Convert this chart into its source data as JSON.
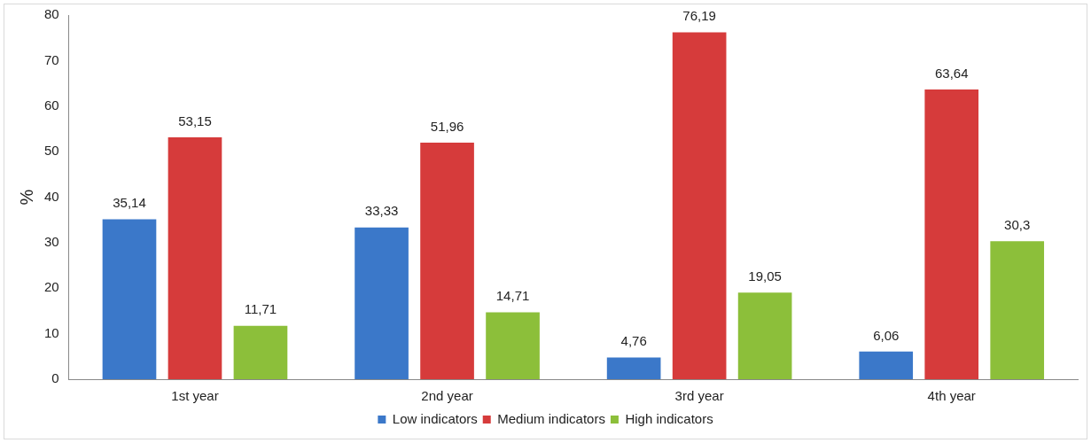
{
  "chart_data": {
    "type": "bar",
    "ylabel": "%",
    "categories": [
      "1st year",
      "2nd year",
      "3rd year",
      "4th year"
    ],
    "series": [
      {
        "name": "Low indicators",
        "color": "#3b78c9",
        "values": [
          35.14,
          33.33,
          4.76,
          6.06
        ],
        "value_labels": [
          "35,14",
          "33,33",
          "4,76",
          "6,06"
        ]
      },
      {
        "name": "Medium indicators",
        "color": "#d63b3b",
        "values": [
          53.15,
          51.96,
          76.19,
          63.64
        ],
        "value_labels": [
          "53,15",
          "51,96",
          "76,19",
          "63,64"
        ]
      },
      {
        "name": "High indicators",
        "color": "#8cbf3a",
        "values": [
          11.71,
          14.71,
          19.05,
          30.3
        ],
        "value_labels": [
          "11,71",
          "14,71",
          "19,05",
          "30,3"
        ]
      }
    ],
    "ylim": [
      0,
      80
    ],
    "yticks": [
      0,
      10,
      20,
      30,
      40,
      50,
      60,
      70,
      80
    ],
    "grid": false,
    "legend": "bottom"
  }
}
